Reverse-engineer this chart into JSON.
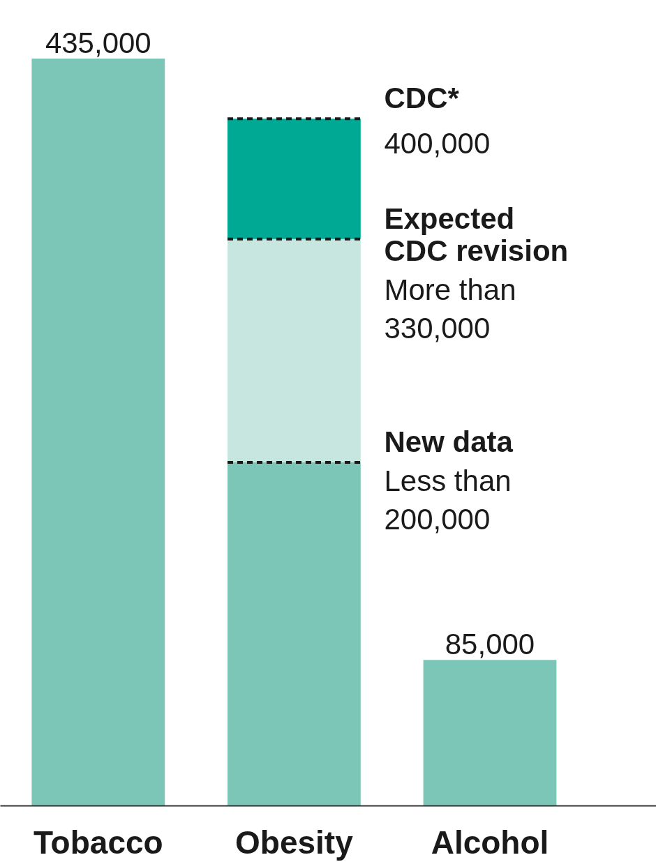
{
  "chart_data": {
    "type": "bar",
    "stacked": true,
    "categories": [
      "Tobacco",
      "Obesity",
      "Alcohol"
    ],
    "series": [
      {
        "color": "#7cc6b8",
        "values": [
          435000,
          200000,
          85000
        ],
        "value_labels": [
          "435,000",
          null,
          "85,000"
        ]
      },
      {
        "color": "#c6e6df",
        "values": [
          null,
          130000,
          null
        ]
      },
      {
        "color": "#00a994",
        "values": [
          null,
          70000,
          null
        ]
      }
    ],
    "ref_lines": [
      {
        "axis": "y",
        "value": 400000,
        "label": "CDC*",
        "color": "#1a1a1a",
        "line_style": "dashed"
      },
      {
        "axis": "y",
        "value": 330000,
        "label": "Expected CDC revision",
        "color": "#1a1a1a",
        "line_style": "dashed"
      },
      {
        "axis": "y",
        "value": 200000,
        "label": "New data",
        "color": "#1a1a1a",
        "line_style": "dashed"
      }
    ],
    "annotations": [
      "400,000",
      "More than 330,000",
      "Less than 200,000"
    ],
    "grid": false
  }
}
